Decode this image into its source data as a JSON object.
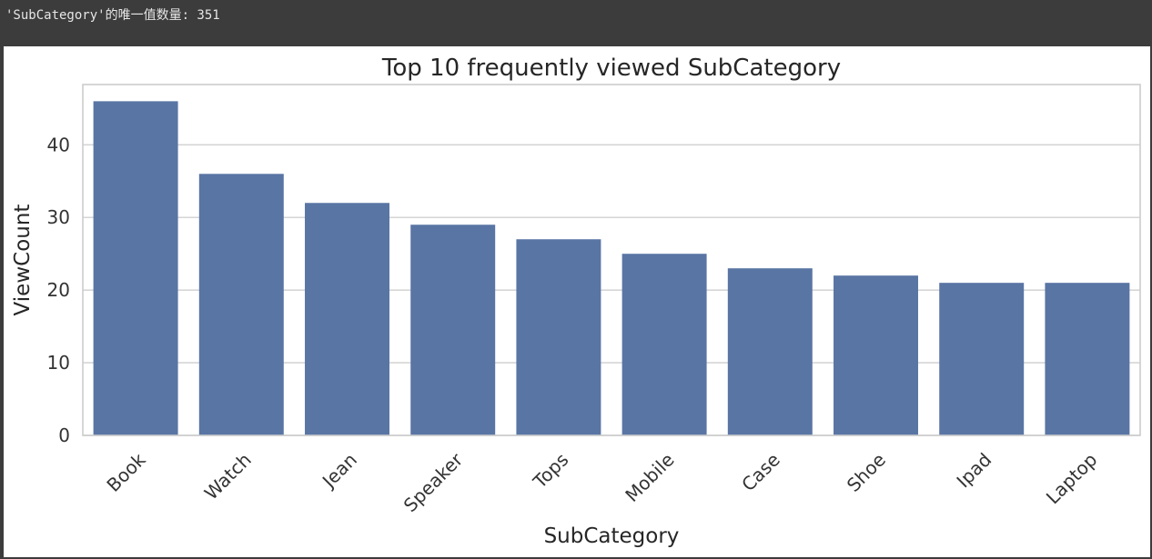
{
  "output": {
    "text": "'SubCategory'的唯一值数量: 351"
  },
  "chart_data": {
    "type": "bar",
    "title": "Top 10 frequently viewed SubCategory",
    "xlabel": "SubCategory",
    "ylabel": "ViewCount",
    "categories": [
      "Book",
      "Watch",
      "Jean",
      "Speaker",
      "Tops",
      "Mobile",
      "Case",
      "Shoe",
      "Ipad",
      "Laptop"
    ],
    "values": [
      46,
      36,
      32,
      29,
      27,
      25,
      23,
      22,
      21,
      21
    ],
    "ylim": [
      0,
      48.3
    ],
    "yticks": [
      0,
      10,
      20,
      30,
      40
    ],
    "grid": true,
    "bar_color": "#5975a4",
    "grid_color": "#d5d5d5",
    "spine_color": "#cccccc",
    "tick_label_rotation": -45
  }
}
